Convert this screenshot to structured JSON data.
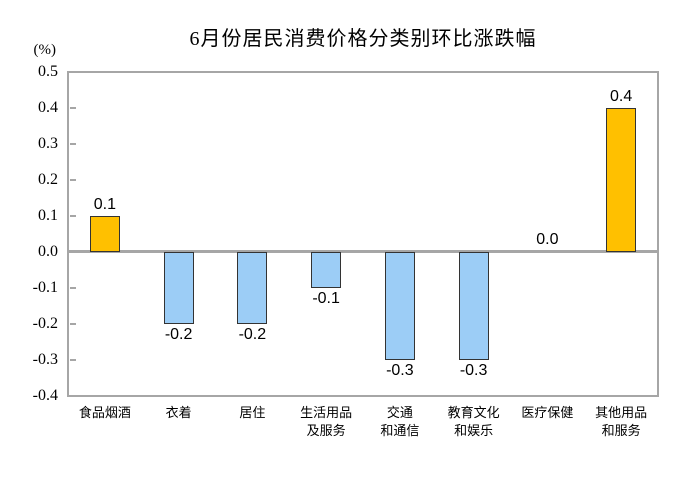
{
  "chart_data": {
    "type": "bar",
    "title": "6月份居民消费价格分类别环比涨跌幅",
    "y_unit": "(%)",
    "categories": [
      "食品烟酒",
      "衣着",
      "居住",
      "生活用品\n及服务",
      "交通\n和通信",
      "教育文化\n和娱乐",
      "医疗保健",
      "其他用品\n和服务"
    ],
    "values": [
      0.1,
      -0.2,
      -0.2,
      -0.1,
      -0.3,
      -0.3,
      0.0,
      0.4
    ],
    "value_labels": [
      "0.1",
      "-0.2",
      "-0.2",
      "-0.1",
      "-0.3",
      "-0.3",
      "0.0",
      "0.4"
    ],
    "ylim": [
      -0.4,
      0.5
    ],
    "ytick_step": 0.1,
    "grid": false,
    "legend": "none",
    "xlabel": "",
    "ylabel": "(%)",
    "colors": {
      "positive_bar": "#FFC000",
      "negative_bar": "#9CCDF6",
      "bar_border": "#333333",
      "plot_border": "#A6A6A6",
      "zero_line": "#A6A6A6",
      "text": "#000000"
    }
  }
}
